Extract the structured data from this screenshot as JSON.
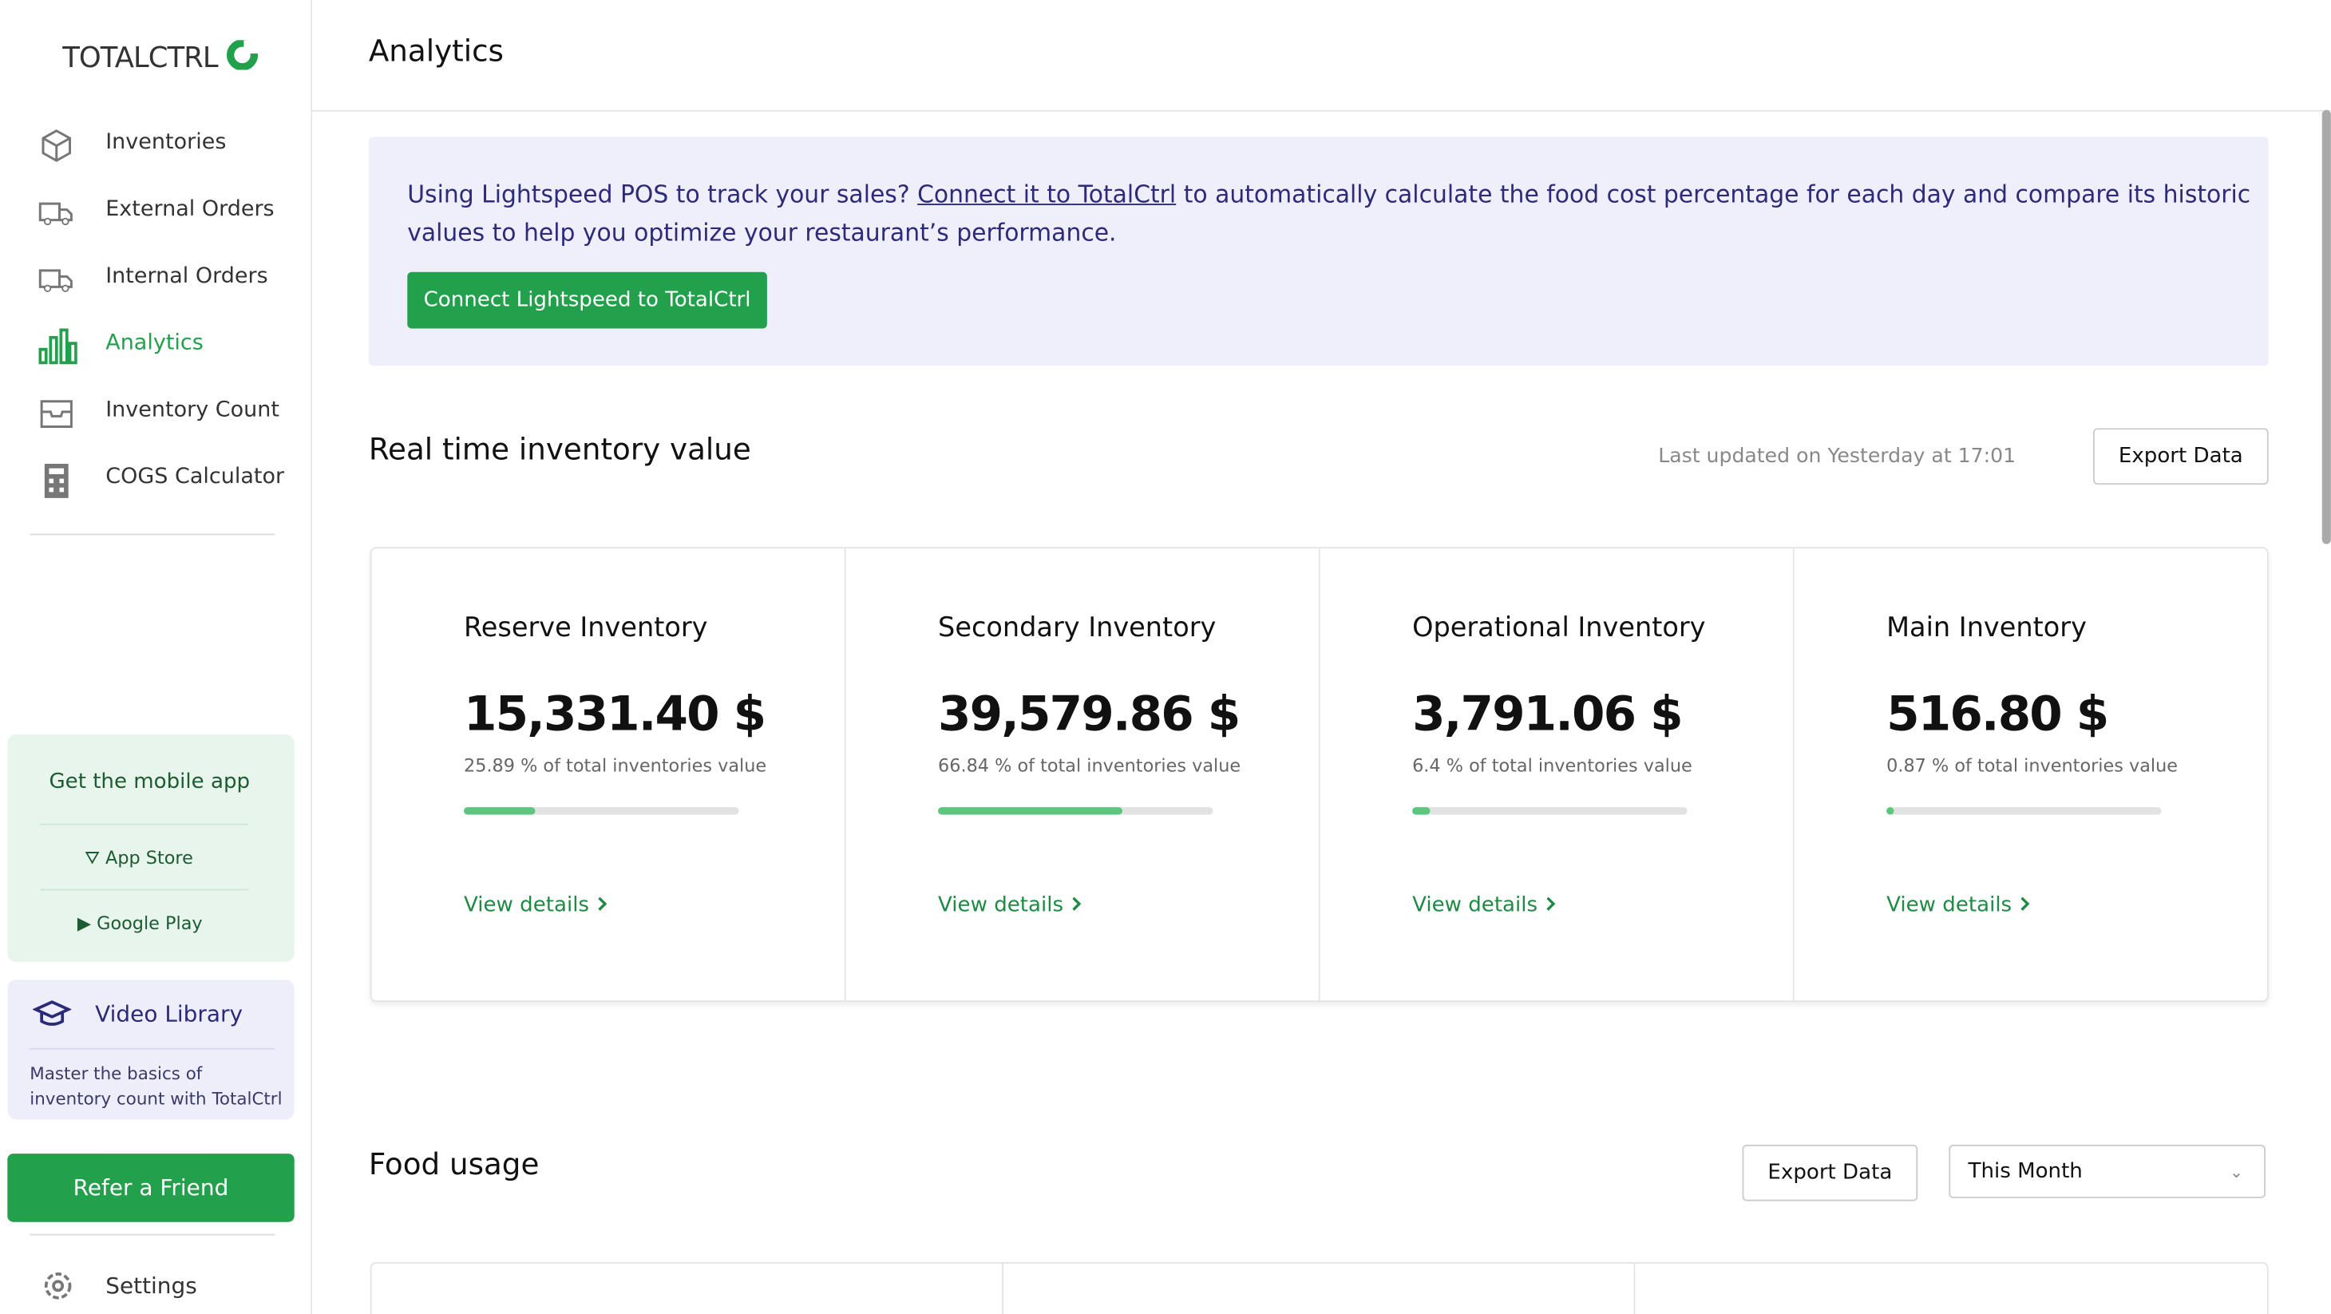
{
  "sidebar": {
    "logo": "TOTALCTRL",
    "nav": [
      "Inventories",
      "External Orders",
      "Internal Orders",
      "Analytics",
      "Inventory Count",
      "COGS Calculator"
    ],
    "active": 3,
    "mobile_app": {
      "title": "Get the mobile app",
      "links": [
        "App Store",
        "Google Play"
      ]
    },
    "video_library": {
      "title": "Video Library",
      "description": "Master the basics of inventory count with TotalCtrl"
    },
    "refer": "Refer a Friend",
    "settings": "Settings"
  },
  "header": {
    "title": "Analytics"
  },
  "banner": {
    "text_before": "Using Lightspeed POS to track your sales?",
    "link": "Connect it to TotalCtrl",
    "text_after": "to automatically calculate the food cost percentage for each day and compare its historic values to help you optimize your restaurant’s performance.",
    "button": "Connect Lightspeed to TotalCtrl"
  },
  "inventory_value": {
    "title": "Real time inventory value",
    "updated": "Last updated on Yesterday at 17:01",
    "export": "Export Data",
    "cards": [
      {
        "name": "Reserve Inventory",
        "value": "15,331.40 $",
        "share": 25.89,
        "share_label": "25.89 % of total inventories value",
        "link": "View details"
      },
      {
        "name": "Secondary Inventory",
        "value": "39,579.86 $",
        "share": 66.84,
        "share_label": "66.84 % of total inventories value",
        "link": "View details"
      },
      {
        "name": "Operational Inventory",
        "value": "3,791.06 $",
        "share": 6.4,
        "share_label": "6.4 % of total inventories value",
        "link": "View details"
      },
      {
        "name": "Main Inventory",
        "value": "516.80 $",
        "share": 0.87,
        "share_label": "0.87 % of total inventories value",
        "link": "View details"
      }
    ]
  },
  "food_usage": {
    "title": "Food usage",
    "export": "Export Data",
    "period": "This Month"
  }
}
